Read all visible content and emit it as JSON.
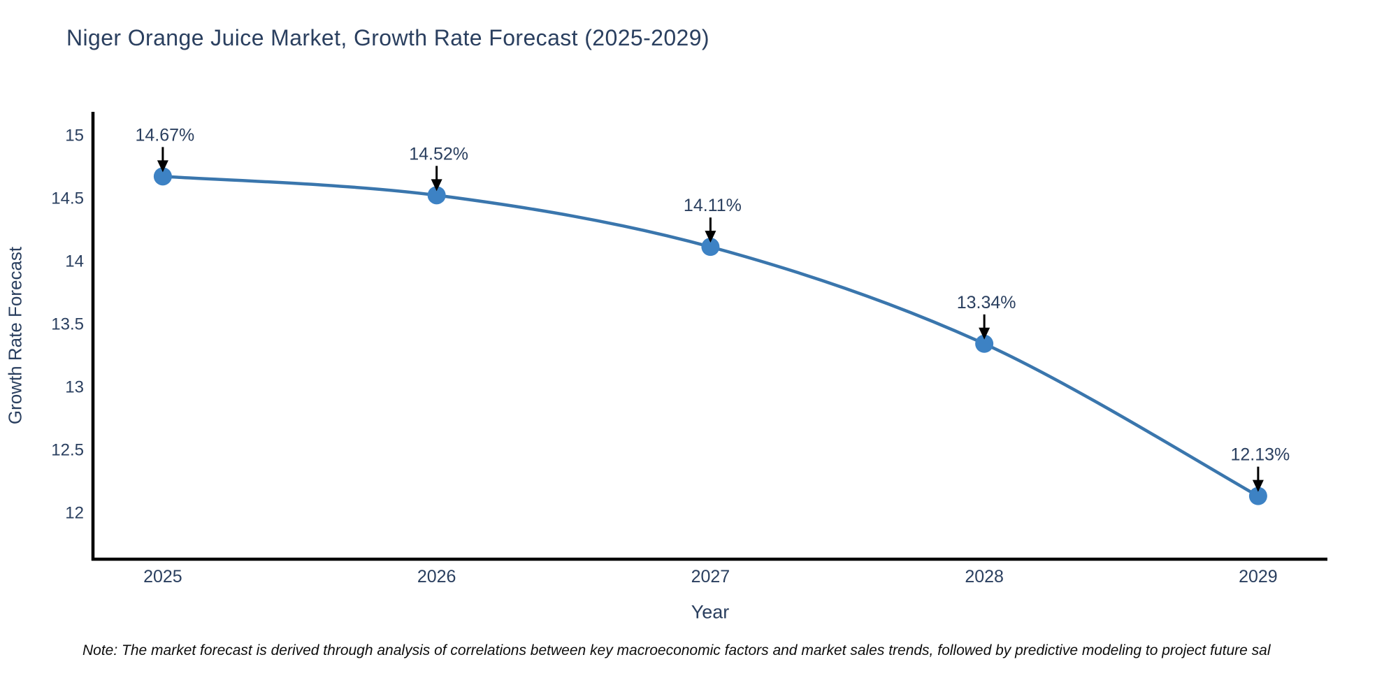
{
  "note": "Note: The market forecast is derived through analysis of correlations between key macroeconomic factors and market sales trends, followed by predictive modeling to project future sal",
  "colors": {
    "text": "#2a3f5f",
    "axis": "#000000",
    "line": "#3a76ad",
    "marker": "#3d82c4",
    "annotation_arrow": "#000000",
    "annotation_text": "#2a3f5f",
    "note_text": "#0d0d0d",
    "background": "#ffffff"
  },
  "chart_data": {
    "type": "line",
    "title": "Niger Orange Juice Market, Growth Rate Forecast (2025-2029)",
    "xlabel": "Year",
    "ylabel": "Growth Rate Forecast",
    "categories": [
      2025,
      2026,
      2027,
      2028,
      2029
    ],
    "series": [
      {
        "name": "Growth Rate Forecast",
        "values": [
          14.67,
          14.52,
          14.11,
          13.34,
          12.13
        ]
      }
    ],
    "point_labels": [
      "14.67%",
      "14.52%",
      "14.11%",
      "13.34%",
      "12.13%"
    ],
    "xticks": [
      "2025",
      "2026",
      "2027",
      "2028",
      "2029"
    ],
    "yticks": [
      12,
      12.5,
      13,
      13.5,
      14,
      14.5,
      15
    ],
    "xlim": [
      2024.745,
      2029.253
    ],
    "ylim": [
      11.628,
      15.183
    ],
    "line_shape": "spline",
    "grid": false,
    "legend": false,
    "annotations": "value labels with down arrows above each point"
  }
}
